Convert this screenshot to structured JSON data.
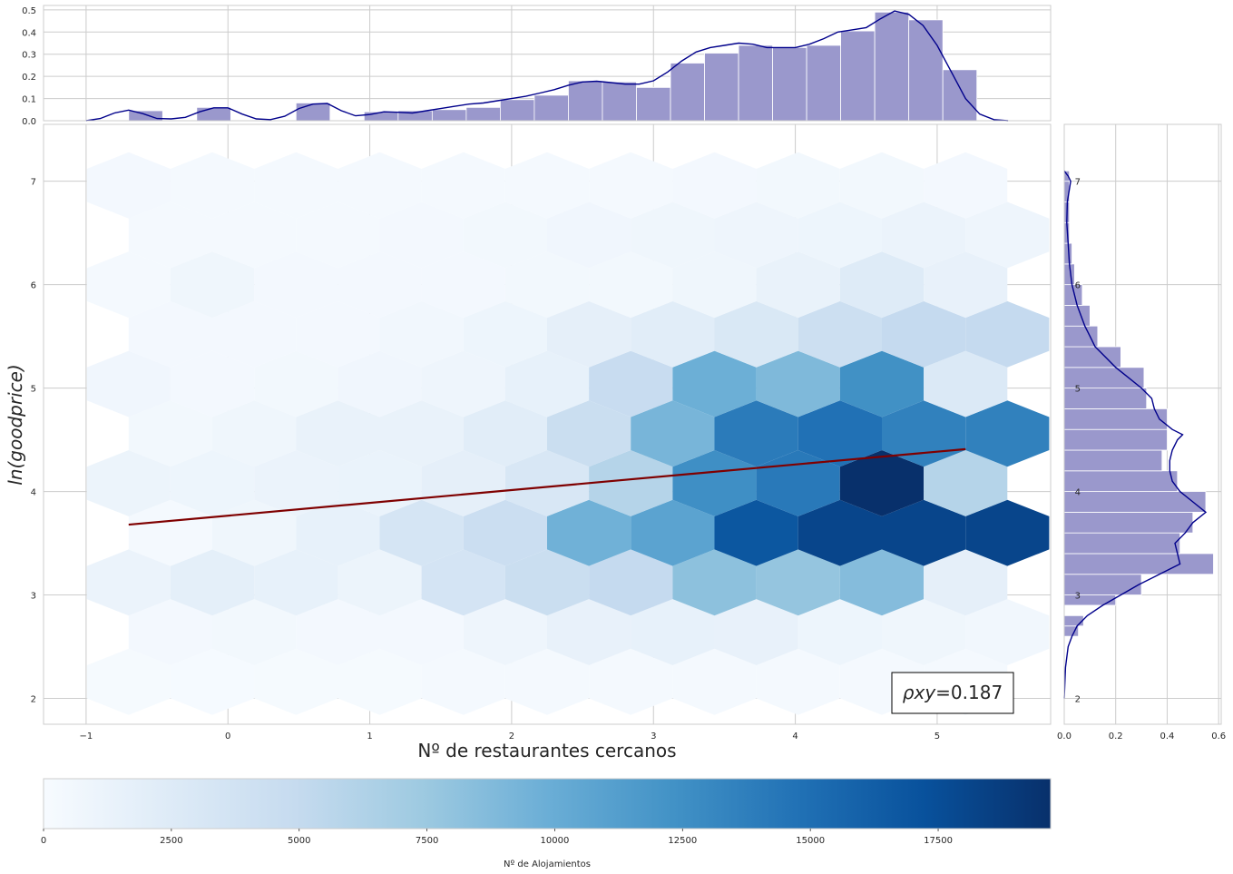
{
  "chart_data": {
    "type": "hexbin",
    "title": "",
    "xlabel": "Nº de restaurantes cercanos",
    "ylabel": "ln(goodprice)",
    "xlim": [
      -1.3,
      5.8
    ],
    "ylim": [
      1.75,
      7.55
    ],
    "xticks": [
      -1,
      0,
      1,
      2,
      3,
      4,
      5
    ],
    "yticks": [
      2,
      3,
      4,
      5,
      6,
      7
    ],
    "grid": true,
    "colormap": "Blues",
    "colorbar": {
      "label": "Nº de Alojamientos",
      "range": [
        0,
        19700
      ],
      "ticks": [
        0,
        2500,
        5000,
        7500,
        10000,
        12500,
        15000,
        17500
      ]
    },
    "annotation": {
      "prefix": "ρxy",
      "value": "=0.187"
    },
    "regression_line": {
      "color": "#7f0000",
      "points": [
        [
          -0.7,
          3.68
        ],
        [
          5.2,
          4.41
        ]
      ]
    },
    "hex_grid": {
      "x_centers": [
        -0.7,
        -0.11,
        0.48,
        1.07,
        1.66,
        2.25,
        2.84,
        3.43,
        4.02,
        4.61,
        5.2
      ],
      "y_rows": [
        2.16,
        2.64,
        3.12,
        3.6,
        4.08,
        4.56,
        5.04,
        5.52,
        6.0,
        6.48,
        6.96
      ],
      "counts": [
        [
          200,
          150,
          200,
          200,
          250,
          300,
          300,
          300,
          300,
          300,
          250
        ],
        [
          400,
          500,
          400,
          400,
          900,
          1500,
          1600,
          1500,
          1000,
          800,
          600
        ],
        [
          1200,
          1900,
          1600,
          1100,
          3500,
          4500,
          5000,
          8200,
          7800,
          8600,
          1800
        ],
        [
          300,
          800,
          1600,
          3400,
          4400,
          9600,
          10800,
          16800,
          18100,
          18100,
          18100
        ],
        [
          1100,
          1000,
          1200,
          1300,
          1800,
          3100,
          6000,
          12500,
          14200,
          19700,
          6000
        ],
        [
          500,
          800,
          1400,
          1400,
          2200,
          4500,
          9200,
          14000,
          14800,
          13600,
          13600
        ],
        [
          700,
          400,
          500,
          700,
          900,
          1600,
          4700,
          9800,
          8900,
          12400,
          2800
        ],
        [
          400,
          400,
          400,
          600,
          1000,
          1800,
          2200,
          3000,
          4300,
          5000,
          5000
        ],
        [
          300,
          800,
          400,
          400,
          400,
          500,
          500,
          800,
          1400,
          2500,
          1500
        ],
        [
          300,
          300,
          300,
          400,
          500,
          700,
          800,
          900,
          1000,
          1200,
          900
        ],
        [
          400,
          300,
          300,
          300,
          300,
          300,
          300,
          400,
          500,
          500,
          400
        ]
      ]
    },
    "top_marginal": {
      "ylim": [
        0,
        0.52
      ],
      "yticks": [
        0.0,
        0.1,
        0.2,
        0.3,
        0.4,
        0.5
      ],
      "bar_color": "#9a98cc",
      "kde_color": "#00008b",
      "bins": [
        [
          -0.7,
          -0.46,
          0.045
        ],
        [
          -0.22,
          0.02,
          0.06
        ],
        [
          0.48,
          0.72,
          0.08
        ],
        [
          0.96,
          1.2,
          0.04
        ],
        [
          1.2,
          1.44,
          0.045
        ],
        [
          1.44,
          1.68,
          0.05
        ],
        [
          1.68,
          1.92,
          0.06
        ],
        [
          1.92,
          2.16,
          0.095
        ],
        [
          2.16,
          2.4,
          0.115
        ],
        [
          2.4,
          2.64,
          0.18
        ],
        [
          2.64,
          2.88,
          0.175
        ],
        [
          2.88,
          3.12,
          0.15
        ],
        [
          3.12,
          3.36,
          0.26
        ],
        [
          3.36,
          3.6,
          0.305
        ],
        [
          3.6,
          3.84,
          0.34
        ],
        [
          3.84,
          4.08,
          0.33
        ],
        [
          4.08,
          4.32,
          0.34
        ],
        [
          4.32,
          4.56,
          0.405
        ],
        [
          4.56,
          4.8,
          0.49
        ],
        [
          4.8,
          5.04,
          0.455
        ],
        [
          5.04,
          5.28,
          0.23
        ]
      ],
      "kde": [
        [
          -1.0,
          0.0
        ],
        [
          -0.9,
          0.01
        ],
        [
          -0.8,
          0.035
        ],
        [
          -0.7,
          0.048
        ],
        [
          -0.6,
          0.032
        ],
        [
          -0.5,
          0.01
        ],
        [
          -0.4,
          0.008
        ],
        [
          -0.3,
          0.015
        ],
        [
          -0.2,
          0.04
        ],
        [
          -0.1,
          0.058
        ],
        [
          0.0,
          0.058
        ],
        [
          0.1,
          0.03
        ],
        [
          0.2,
          0.008
        ],
        [
          0.3,
          0.005
        ],
        [
          0.4,
          0.02
        ],
        [
          0.5,
          0.055
        ],
        [
          0.6,
          0.075
        ],
        [
          0.7,
          0.078
        ],
        [
          0.8,
          0.045
        ],
        [
          0.9,
          0.022
        ],
        [
          1.0,
          0.028
        ],
        [
          1.1,
          0.04
        ],
        [
          1.2,
          0.038
        ],
        [
          1.3,
          0.035
        ],
        [
          1.4,
          0.045
        ],
        [
          1.5,
          0.055
        ],
        [
          1.6,
          0.065
        ],
        [
          1.7,
          0.075
        ],
        [
          1.8,
          0.08
        ],
        [
          1.9,
          0.09
        ],
        [
          2.0,
          0.1
        ],
        [
          2.1,
          0.11
        ],
        [
          2.2,
          0.125
        ],
        [
          2.3,
          0.14
        ],
        [
          2.4,
          0.16
        ],
        [
          2.5,
          0.175
        ],
        [
          2.6,
          0.178
        ],
        [
          2.7,
          0.172
        ],
        [
          2.8,
          0.165
        ],
        [
          2.9,
          0.165
        ],
        [
          3.0,
          0.18
        ],
        [
          3.1,
          0.22
        ],
        [
          3.2,
          0.27
        ],
        [
          3.3,
          0.31
        ],
        [
          3.4,
          0.33
        ],
        [
          3.5,
          0.34
        ],
        [
          3.6,
          0.35
        ],
        [
          3.7,
          0.345
        ],
        [
          3.8,
          0.33
        ],
        [
          3.9,
          0.33
        ],
        [
          4.0,
          0.33
        ],
        [
          4.1,
          0.345
        ],
        [
          4.2,
          0.37
        ],
        [
          4.3,
          0.4
        ],
        [
          4.4,
          0.41
        ],
        [
          4.5,
          0.42
        ],
        [
          4.6,
          0.46
        ],
        [
          4.7,
          0.495
        ],
        [
          4.8,
          0.48
        ],
        [
          4.9,
          0.43
        ],
        [
          5.0,
          0.34
        ],
        [
          5.1,
          0.22
        ],
        [
          5.2,
          0.1
        ],
        [
          5.3,
          0.03
        ],
        [
          5.4,
          0.005
        ],
        [
          5.5,
          0.0
        ]
      ]
    },
    "right_marginal": {
      "xlim": [
        0,
        0.61
      ],
      "xticks": [
        0.0,
        0.2,
        0.4,
        0.6
      ],
      "bins": [
        [
          2.6,
          2.7,
          0.055
        ],
        [
          2.7,
          2.8,
          0.075
        ],
        [
          2.8,
          2.9,
          0.0
        ],
        [
          2.9,
          3.0,
          0.2
        ],
        [
          3.0,
          3.2,
          0.3
        ],
        [
          3.2,
          3.4,
          0.58
        ],
        [
          3.4,
          3.6,
          0.45
        ],
        [
          3.6,
          3.8,
          0.5
        ],
        [
          3.8,
          4.0,
          0.55
        ],
        [
          4.0,
          4.2,
          0.44
        ],
        [
          4.2,
          4.4,
          0.38
        ],
        [
          4.4,
          4.6,
          0.4
        ],
        [
          4.6,
          4.8,
          0.4
        ],
        [
          4.8,
          5.0,
          0.32
        ],
        [
          5.0,
          5.2,
          0.31
        ],
        [
          5.2,
          5.4,
          0.22
        ],
        [
          5.4,
          5.6,
          0.13
        ],
        [
          5.6,
          5.8,
          0.1
        ],
        [
          5.8,
          6.0,
          0.07
        ],
        [
          6.0,
          6.2,
          0.04
        ],
        [
          6.2,
          6.4,
          0.03
        ],
        [
          6.4,
          6.6,
          0.02
        ],
        [
          6.6,
          6.8,
          0.02
        ],
        [
          6.8,
          7.0,
          0.02
        ],
        [
          7.0,
          7.1,
          0.02
        ]
      ],
      "kde": [
        [
          2.0,
          0.0
        ],
        [
          2.3,
          0.005
        ],
        [
          2.5,
          0.015
        ],
        [
          2.6,
          0.03
        ],
        [
          2.7,
          0.05
        ],
        [
          2.8,
          0.09
        ],
        [
          2.9,
          0.15
        ],
        [
          3.0,
          0.22
        ],
        [
          3.1,
          0.29
        ],
        [
          3.2,
          0.37
        ],
        [
          3.3,
          0.45
        ],
        [
          3.4,
          0.44
        ],
        [
          3.5,
          0.43
        ],
        [
          3.6,
          0.47
        ],
        [
          3.7,
          0.5
        ],
        [
          3.8,
          0.55
        ],
        [
          3.9,
          0.5
        ],
        [
          4.0,
          0.45
        ],
        [
          4.1,
          0.42
        ],
        [
          4.2,
          0.41
        ],
        [
          4.3,
          0.41
        ],
        [
          4.4,
          0.42
        ],
        [
          4.5,
          0.44
        ],
        [
          4.55,
          0.46
        ],
        [
          4.6,
          0.42
        ],
        [
          4.7,
          0.37
        ],
        [
          4.8,
          0.35
        ],
        [
          4.9,
          0.34
        ],
        [
          5.0,
          0.3
        ],
        [
          5.1,
          0.25
        ],
        [
          5.2,
          0.2
        ],
        [
          5.3,
          0.16
        ],
        [
          5.4,
          0.12
        ],
        [
          5.5,
          0.1
        ],
        [
          5.6,
          0.08
        ],
        [
          5.8,
          0.05
        ],
        [
          6.0,
          0.03
        ],
        [
          6.2,
          0.02
        ],
        [
          6.4,
          0.015
        ],
        [
          6.6,
          0.01
        ],
        [
          6.8,
          0.012
        ],
        [
          7.0,
          0.025
        ],
        [
          7.05,
          0.015
        ],
        [
          7.1,
          0.0
        ]
      ]
    }
  }
}
